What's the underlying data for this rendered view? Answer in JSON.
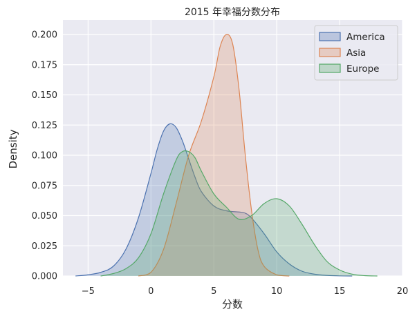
{
  "chart_data": {
    "type": "area",
    "title": "2015 年幸福分数分布",
    "xlabel": "分数",
    "ylabel": "Density",
    "xlim": [
      -7,
      20
    ],
    "ylim": [
      0,
      0.212
    ],
    "xticks": [
      -5,
      0,
      5,
      10,
      15,
      20
    ],
    "yticks": [
      0.0,
      0.025,
      0.05,
      0.075,
      0.1,
      0.125,
      0.15,
      0.175,
      0.2
    ],
    "xtick_labels": [
      "−5",
      "0",
      "5",
      "10",
      "15",
      "20"
    ],
    "ytick_labels": [
      "0.000",
      "0.025",
      "0.050",
      "0.075",
      "0.100",
      "0.125",
      "0.150",
      "0.175",
      "0.200"
    ],
    "grid": true,
    "legend_position": "top-right",
    "series": [
      {
        "name": "America",
        "color": "#4c72b0",
        "x": [
          -6,
          -5,
          -4,
          -3,
          -2,
          -1,
          0,
          0.5,
          1,
          1.5,
          2,
          2.5,
          3,
          3.5,
          4,
          5,
          6,
          7,
          7.5,
          8,
          9,
          10,
          11,
          12,
          13,
          14,
          15,
          16
        ],
        "y": [
          0.0,
          0.001,
          0.003,
          0.008,
          0.022,
          0.048,
          0.085,
          0.105,
          0.12,
          0.126,
          0.123,
          0.112,
          0.097,
          0.082,
          0.07,
          0.058,
          0.054,
          0.053,
          0.052,
          0.048,
          0.035,
          0.02,
          0.01,
          0.004,
          0.0015,
          0.0005,
          0.0001,
          0.0
        ]
      },
      {
        "name": "Asia",
        "color": "#dd8452",
        "x": [
          -1,
          0,
          1,
          2,
          3,
          4,
          5,
          5.5,
          6,
          6.5,
          7,
          7.5,
          8,
          8.5,
          9,
          10,
          11
        ],
        "y": [
          0.0,
          0.003,
          0.022,
          0.06,
          0.1,
          0.128,
          0.165,
          0.19,
          0.2,
          0.192,
          0.155,
          0.1,
          0.054,
          0.022,
          0.008,
          0.001,
          0.0
        ]
      },
      {
        "name": "Europe",
        "color": "#55a868",
        "x": [
          -4,
          -3,
          -2,
          -1,
          0,
          1,
          2,
          2.5,
          3,
          3.5,
          4,
          5,
          6,
          7,
          8,
          9,
          10,
          11,
          12,
          13,
          14,
          15,
          16,
          17,
          18
        ],
        "y": [
          0.0,
          0.002,
          0.006,
          0.015,
          0.035,
          0.068,
          0.096,
          0.103,
          0.103,
          0.098,
          0.087,
          0.068,
          0.057,
          0.047,
          0.05,
          0.06,
          0.064,
          0.058,
          0.043,
          0.026,
          0.012,
          0.005,
          0.0015,
          0.0003,
          0.0
        ]
      }
    ]
  }
}
